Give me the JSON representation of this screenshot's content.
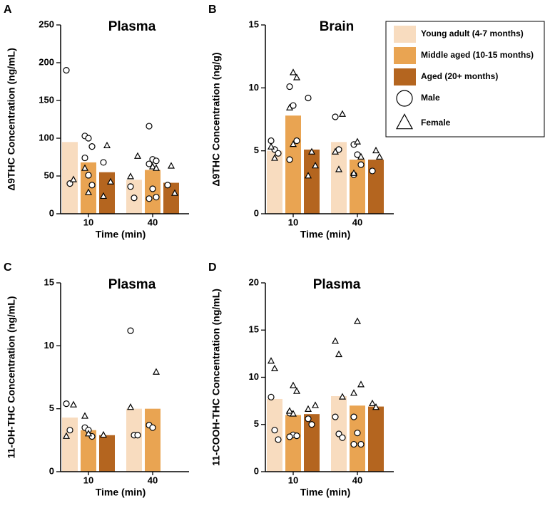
{
  "legend": {
    "series": [
      {
        "name": "Young adult (4-7 months)",
        "color": "#f8dcbf"
      },
      {
        "name": "Middle aged (10-15 months)",
        "color": "#e9a452"
      },
      {
        "name": "Aged (20+ months)",
        "color": "#b4651f"
      }
    ],
    "markers": [
      {
        "name": "Male",
        "shape": "circle"
      },
      {
        "name": "Female",
        "shape": "triangle"
      }
    ]
  },
  "chart_data": [
    {
      "type": "bar",
      "panel": "A",
      "title": "Plasma",
      "y_label": "Δ9THC Concentration (ng/mL)",
      "x_label": "Time (min)",
      "categories": [
        "10",
        "40"
      ],
      "ylim": [
        0,
        250
      ],
      "yticks": [
        0,
        50,
        100,
        150,
        200,
        250
      ],
      "series": [
        {
          "values": [
            95,
            45
          ],
          "male": [
            [
              190,
              40
            ],
            [
              36,
              21
            ]
          ],
          "female": [
            [
              45
            ],
            [
              76,
              49
            ]
          ]
        },
        {
          "values": [
            68,
            58
          ],
          "male": [
            [
              103,
              100,
              89,
              74,
              51,
              38
            ],
            [
              116,
              72,
              70,
              66,
              33,
              22,
              20
            ]
          ],
          "female": [
            [
              60,
              28
            ],
            [
              62,
              60
            ]
          ]
        },
        {
          "values": [
            55,
            41
          ],
          "male": [
            [
              68
            ],
            [
              38
            ]
          ],
          "female": [
            [
              90,
              42,
              23
            ],
            [
              63,
              27
            ]
          ]
        }
      ]
    },
    {
      "type": "bar",
      "panel": "B",
      "title": "Brain",
      "y_label": "Δ9THC Concentration (ng/g)",
      "x_label": "Time (min)",
      "categories": [
        "10",
        "40"
      ],
      "ylim": [
        0,
        15
      ],
      "yticks": [
        0,
        5,
        10,
        15
      ],
      "series": [
        {
          "values": [
            5.0,
            5.7
          ],
          "male": [
            [
              5.8,
              5.1,
              4.8
            ],
            [
              7.7,
              5.1
            ]
          ],
          "female": [
            [
              5.3,
              4.4
            ],
            [
              7.9,
              4.9,
              3.5
            ]
          ]
        },
        {
          "values": [
            7.8,
            4.3
          ],
          "male": [
            [
              10.1,
              8.6,
              5.8,
              4.3
            ],
            [
              5.5,
              4.7,
              3.9,
              3.1
            ]
          ],
          "female": [
            [
              11.2,
              10.8,
              8.4,
              5.5
            ],
            [
              5.7,
              4.5,
              3.2
            ]
          ]
        },
        {
          "values": [
            5.1,
            4.3
          ],
          "male": [
            [
              9.2
            ],
            [
              3.4
            ]
          ],
          "female": [
            [
              4.9,
              3.8,
              3.0
            ],
            [
              5.0,
              4.5
            ]
          ]
        }
      ]
    },
    {
      "type": "bar",
      "panel": "C",
      "title": "Plasma",
      "y_label": "11-OH-THC Concentration (ng/mL)",
      "x_label": "Time (min)",
      "categories": [
        "10",
        "40"
      ],
      "ylim": [
        0,
        15
      ],
      "yticks": [
        0,
        5,
        10,
        15
      ],
      "series": [
        {
          "values": [
            4.3,
            5.0
          ],
          "male": [
            [
              5.4,
              3.3
            ],
            [
              11.2,
              2.9,
              2.9
            ]
          ],
          "female": [
            [
              5.3,
              2.8
            ],
            [
              5.1
            ]
          ]
        },
        {
          "values": [
            3.3,
            5.0
          ],
          "male": [
            [
              3.5,
              3.3,
              2.8
            ],
            [
              3.7,
              3.5
            ]
          ],
          "female": [
            [
              4.4,
              3.0
            ],
            [
              7.9
            ]
          ]
        },
        {
          "values": [
            2.9,
            null
          ],
          "male": [
            [],
            []
          ],
          "female": [
            [
              2.9
            ],
            []
          ]
        }
      ]
    },
    {
      "type": "bar",
      "panel": "D",
      "title": "Plasma",
      "y_label": "11-COOH-THC Concentration (ng/mL)",
      "x_label": "Time (min)",
      "categories": [
        "10",
        "40"
      ],
      "ylim": [
        0,
        20
      ],
      "yticks": [
        0,
        5,
        10,
        15,
        20
      ],
      "series": [
        {
          "values": [
            7.7,
            8.0
          ],
          "male": [
            [
              7.9,
              4.4,
              3.4
            ],
            [
              5.8,
              4.0,
              3.6
            ]
          ],
          "female": [
            [
              11.7,
              10.9
            ],
            [
              13.8,
              12.4,
              7.9
            ]
          ]
        },
        {
          "values": [
            6.0,
            7.0
          ],
          "male": [
            [
              6.2,
              3.9,
              3.8,
              3.7
            ],
            [
              5.8,
              4.1,
              2.9,
              2.9
            ]
          ],
          "female": [
            [
              9.1,
              8.5,
              6.4,
              6.1
            ],
            [
              15.9,
              9.2,
              8.3
            ]
          ]
        },
        {
          "values": [
            6.1,
            6.9
          ],
          "male": [
            [
              5.6,
              5.0
            ],
            []
          ],
          "female": [
            [
              7.0,
              6.6
            ],
            [
              7.2,
              6.8
            ]
          ]
        }
      ]
    }
  ]
}
